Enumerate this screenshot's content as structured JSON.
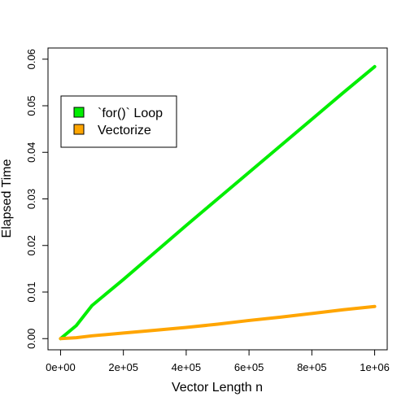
{
  "chart_data": {
    "type": "line",
    "xlabel": "Vector Length n",
    "ylabel": "Elapsed Time",
    "xlim": [
      0,
      1000000
    ],
    "ylim": [
      0,
      0.06
    ],
    "x_ticks": [
      {
        "value": 0,
        "label": "0e+00"
      },
      {
        "value": 200000,
        "label": "2e+05"
      },
      {
        "value": 400000,
        "label": "4e+05"
      },
      {
        "value": 600000,
        "label": "6e+05"
      },
      {
        "value": 800000,
        "label": "8e+05"
      },
      {
        "value": 1000000,
        "label": "1e+06"
      }
    ],
    "y_ticks": [
      {
        "value": 0,
        "label": "0.00"
      },
      {
        "value": 0.01,
        "label": "0.01"
      },
      {
        "value": 0.02,
        "label": "0.02"
      },
      {
        "value": 0.03,
        "label": "0.03"
      },
      {
        "value": 0.04,
        "label": "0.04"
      },
      {
        "value": 0.05,
        "label": "0.05"
      },
      {
        "value": 0.06,
        "label": "0.06"
      }
    ],
    "grid": false,
    "legend_position": "top-left",
    "series": [
      {
        "name": "`for()` Loop",
        "color": "#00ee00",
        "x": [
          0,
          50000,
          100000,
          200000,
          300000,
          400000,
          500000,
          600000,
          700000,
          800000,
          900000,
          1000000
        ],
        "y": [
          0.0,
          0.0028,
          0.0071,
          0.0127,
          0.0185,
          0.0243,
          0.03,
          0.0357,
          0.0414,
          0.0471,
          0.0528,
          0.0584
        ]
      },
      {
        "name": "Vectorize",
        "color": "#ffa500",
        "x": [
          0,
          50000,
          100000,
          200000,
          300000,
          400000,
          500000,
          600000,
          700000,
          800000,
          900000,
          1000000
        ],
        "y": [
          0.0,
          0.0002,
          0.0006,
          0.0012,
          0.0018,
          0.0024,
          0.0031,
          0.0039,
          0.0046,
          0.0054,
          0.0062,
          0.0069
        ]
      }
    ]
  }
}
